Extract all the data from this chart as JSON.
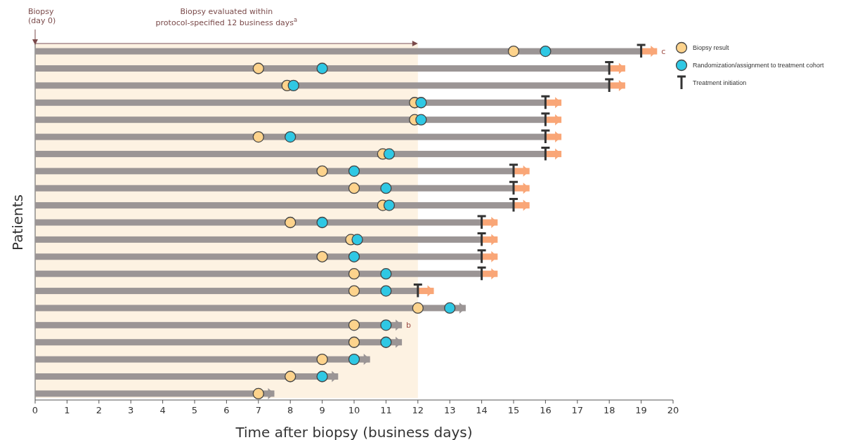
{
  "chart_data": {
    "type": "bar",
    "orientation": "horizontal",
    "stacked": true,
    "ylabel": "Patients",
    "xlabel": "Time after biopsy (business days)",
    "categories": [
      null,
      null,
      null,
      null,
      null,
      null,
      null,
      null,
      null,
      null,
      null,
      null,
      null,
      null,
      null,
      null,
      null,
      null,
      null,
      null,
      null
    ],
    "xlim": [
      0,
      20
    ],
    "xticks": [
      0,
      1,
      2,
      3,
      4,
      5,
      6,
      7,
      8,
      9,
      10,
      11,
      12,
      13,
      14,
      15,
      16,
      17,
      18,
      19,
      20
    ],
    "tick_labels": "x",
    "grid": false,
    "legend": "top right",
    "series": [
      {
        "color": "#9b9595",
        "values": [
          19,
          18,
          18,
          16,
          16,
          16,
          16,
          15,
          15,
          15,
          14,
          14,
          14,
          14,
          12,
          13.5,
          11.5,
          11.5,
          10.5,
          9.5,
          7.5
        ]
      },
      {
        "color": "#f9a677",
        "values": [
          0.5,
          0.5,
          0.5,
          0.5,
          0.5,
          0.5,
          0.5,
          0.5,
          0.5,
          0.5,
          0.5,
          0.5,
          0.5,
          0.5,
          0.5,
          null,
          null,
          null,
          null,
          null,
          null
        ]
      },
      {
        "type": "scatter",
        "name": "Biopsy result",
        "color": "#fdd38c",
        "marker": "circle",
        "values": [
          15,
          7,
          7.9,
          11.9,
          11.9,
          7,
          10.9,
          9,
          10,
          10.9,
          8,
          9.9,
          9,
          10,
          10,
          12,
          10,
          10,
          9,
          8,
          7
        ]
      },
      {
        "type": "scatter",
        "name": "Randomization/assignment to treatment cohort",
        "color": "#2fc8e4",
        "marker": "circle",
        "values": [
          16,
          9,
          8.1,
          12.1,
          12.1,
          8,
          11.1,
          10,
          11,
          11.1,
          9,
          10.1,
          10,
          11,
          11,
          13,
          11,
          11,
          10,
          9,
          null
        ]
      },
      {
        "type": "scatter",
        "name": "Treatment initiation",
        "color": "#333333",
        "values": [
          19,
          18,
          18,
          16,
          16,
          16,
          16,
          15,
          15,
          15,
          14,
          14,
          14,
          14,
          12,
          null,
          null,
          null,
          null,
          null,
          null
        ]
      }
    ],
    "bands": [
      {
        "axis": "x",
        "from": 0,
        "to": 12,
        "color": "#fdf2e2",
        "label": "Biopsy evaluated within\nprotocol-specified 12 business days$^{a}$"
      }
    ],
    "annotations": [
      "Biopsy\n(day 0)",
      "b",
      "c"
    ]
  }
}
